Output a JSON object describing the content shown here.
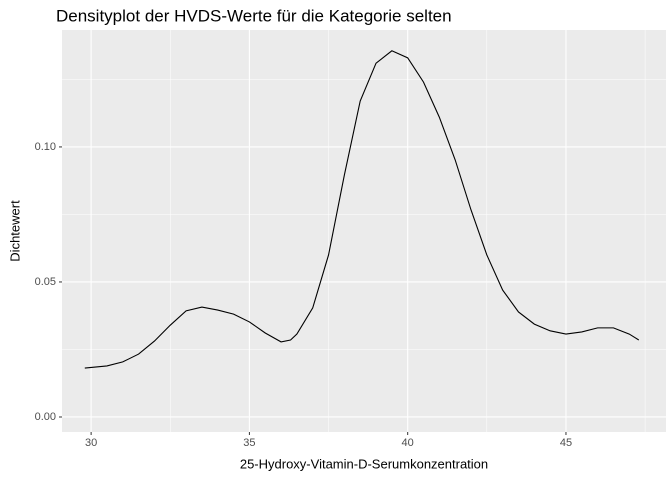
{
  "chart_data": {
    "type": "line",
    "title": "Densityplot der HVDS-Werte für die Kategorie selten",
    "x_label": "25-Hydroxy-Vitamin-D-Serumkonzentration",
    "y_label": "Dichtewert",
    "x": [
      29.8,
      30.5,
      31,
      31.5,
      32,
      32.5,
      33,
      33.5,
      34,
      34.5,
      35,
      35.5,
      36,
      36.3,
      36.5,
      37,
      37.5,
      38,
      38.5,
      39,
      39.5,
      40,
      40.5,
      41,
      41.5,
      42,
      42.5,
      43,
      43.5,
      44,
      44.5,
      45,
      45.5,
      46,
      46.5,
      47,
      47.3
    ],
    "series": [
      {
        "color": "#000000",
        "values": [
          0.0181,
          0.0189,
          0.0204,
          0.0233,
          0.0281,
          0.034,
          0.0393,
          0.0407,
          0.0396,
          0.0381,
          0.0352,
          0.0311,
          0.0278,
          0.0285,
          0.0307,
          0.0404,
          0.06,
          0.0896,
          0.117,
          0.131,
          0.1356,
          0.133,
          0.124,
          0.111,
          0.0952,
          0.0767,
          0.06,
          0.047,
          0.0389,
          0.0344,
          0.0319,
          0.0307,
          0.0315,
          0.033,
          0.033,
          0.0307,
          0.0285
        ]
      }
    ],
    "xlim": [
      29.08,
      48.16
    ],
    "ylim": [
      -0.00556,
      0.1433
    ],
    "xticks": [
      30,
      35,
      40,
      45
    ],
    "yticks": [
      {
        "value": 0,
        "label": "0.00"
      },
      {
        "value": 0.05,
        "label": "0.05"
      },
      {
        "value": 0.1,
        "label": "0.10"
      }
    ],
    "grid": true
  }
}
